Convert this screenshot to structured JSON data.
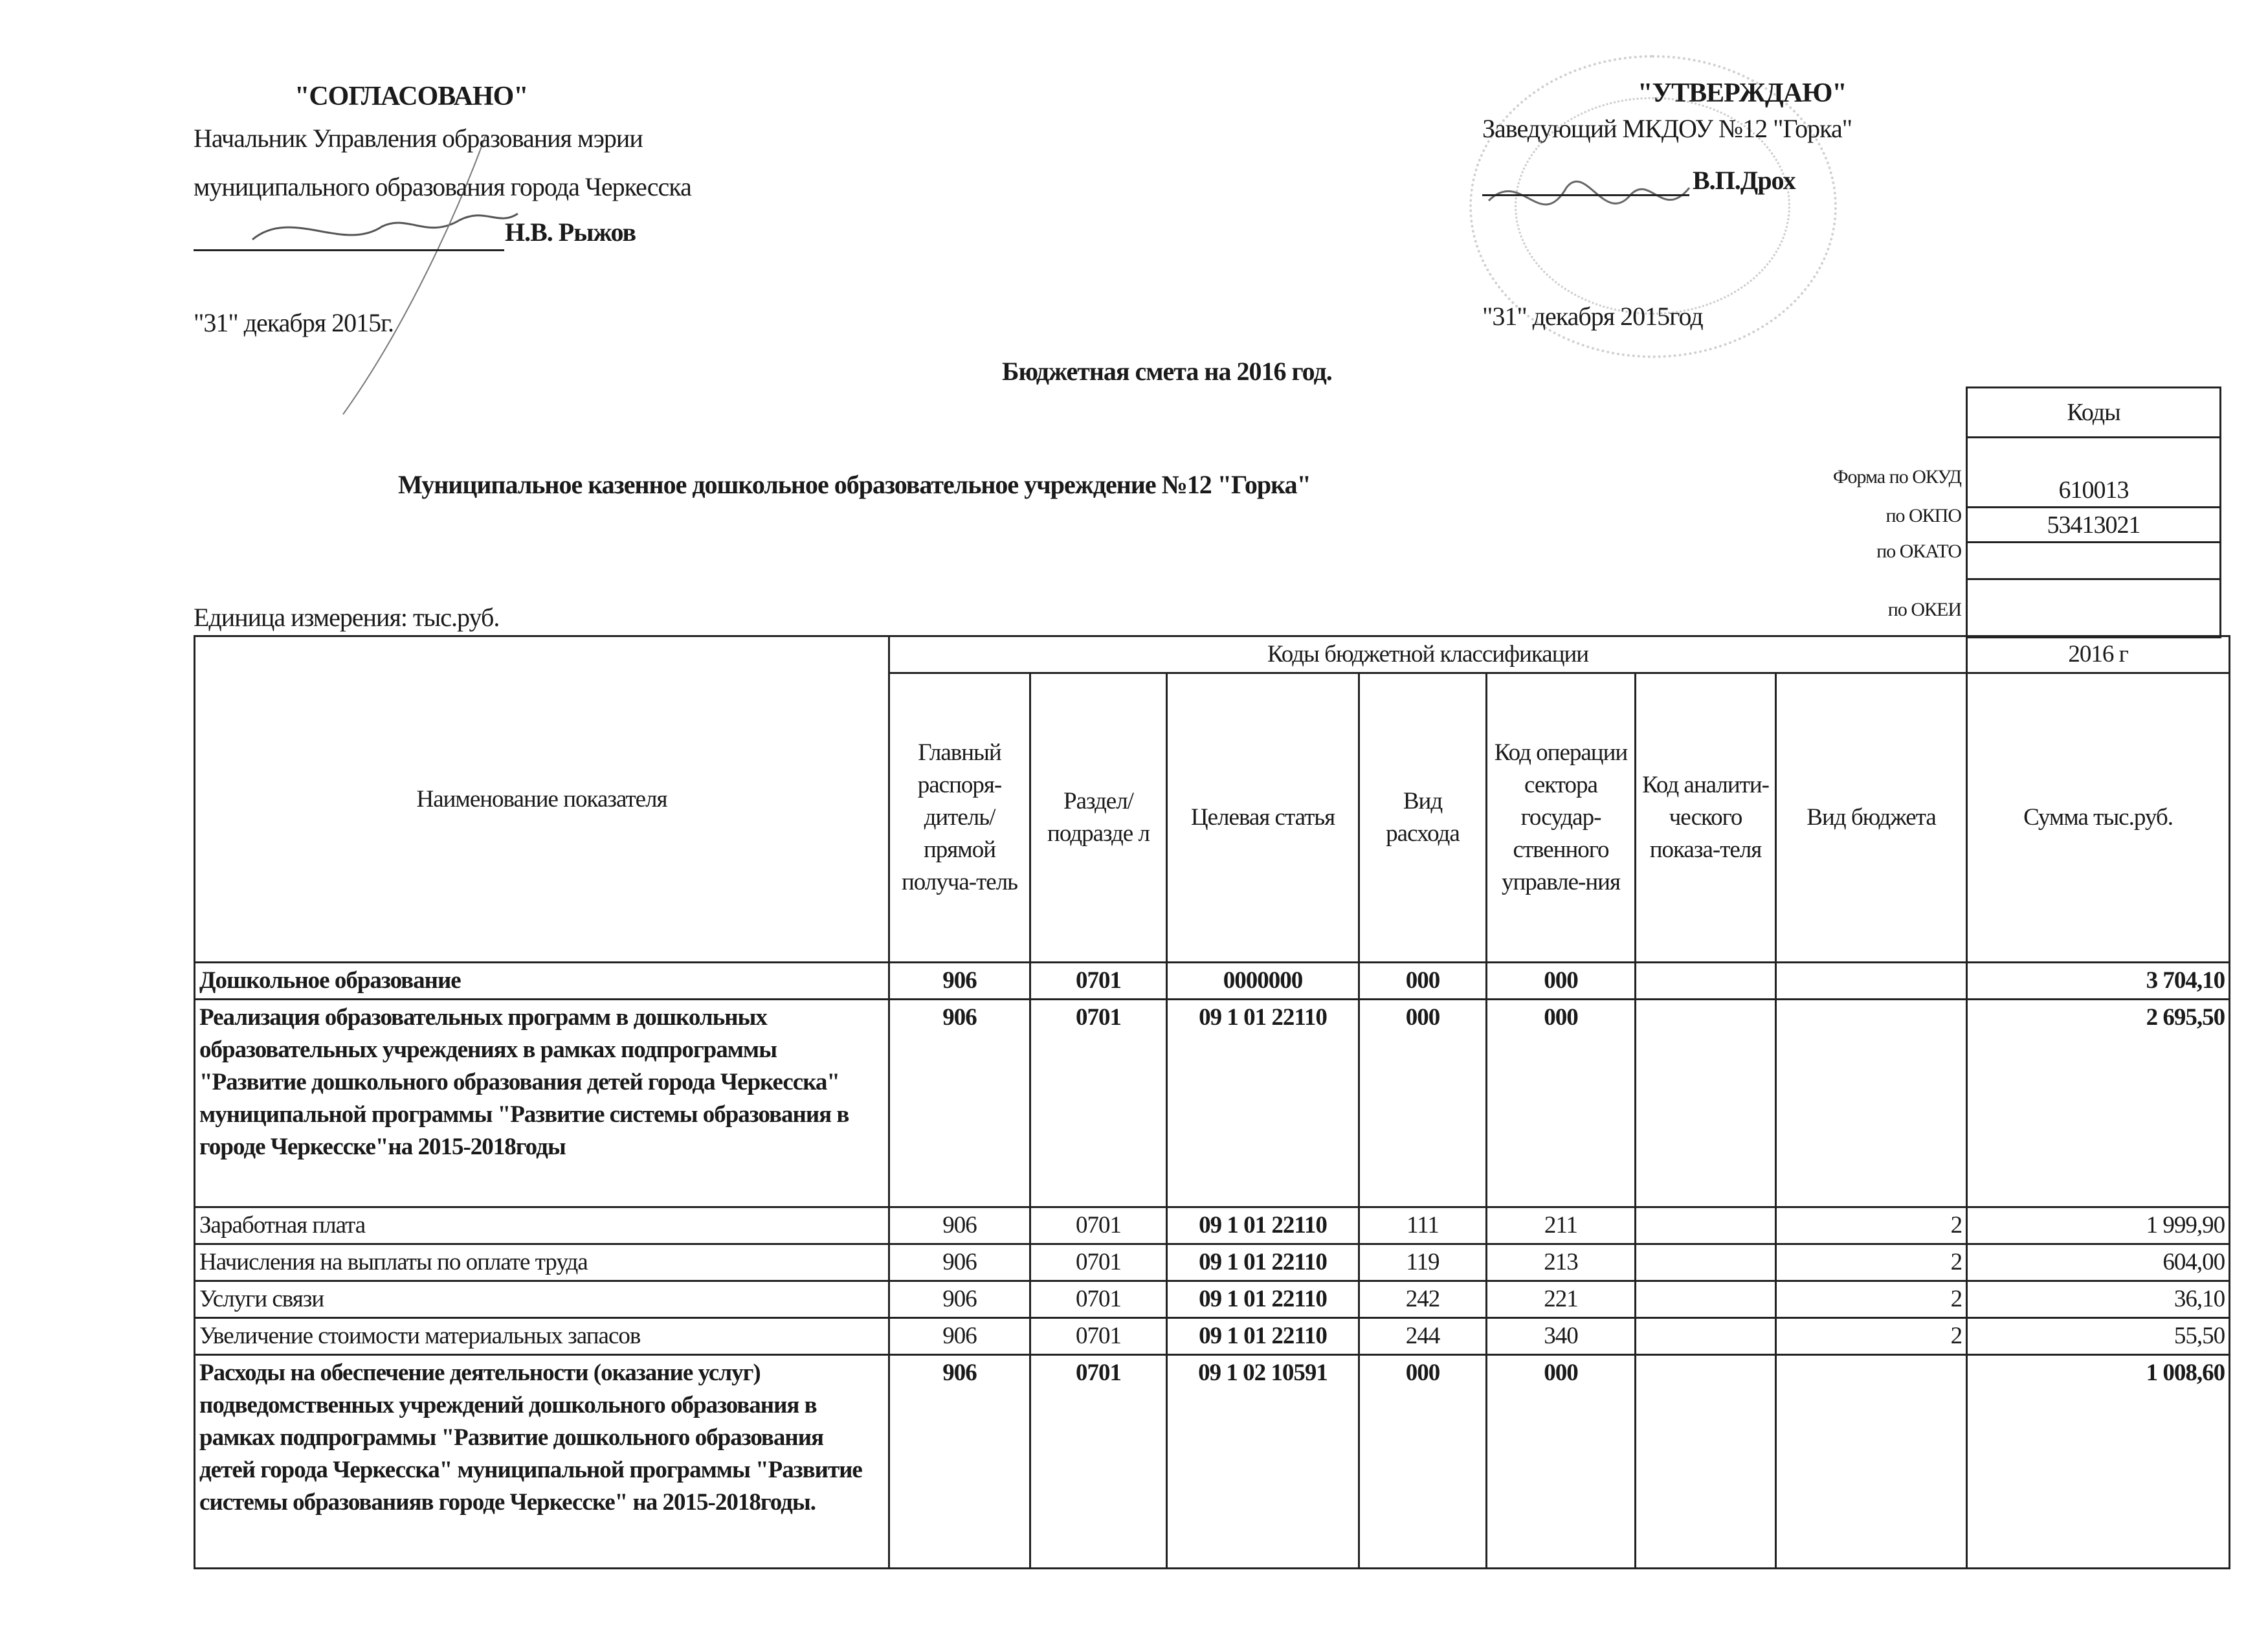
{
  "left_block": {
    "title": "\"СОГЛАСОВАНО\"",
    "line1": "Начальник Управления образования мэрии",
    "line2": "муниципального образования города Черкесска",
    "name": "Н.В. Рыжов",
    "date": "\"31\"  декабря 2015г."
  },
  "right_block": {
    "title": "\"УТВЕРЖДАЮ\"",
    "line1": "Заведующий МКДОУ №12 \"Горка\"",
    "name": "В.П.Дрох",
    "date": "\"31\" декабря  2015год"
  },
  "doc_title": "Бюджетная смета на 2016 год.",
  "org_name": "Муниципальное казенное дошкольное образовательное учреждение №12 \"Горка\"",
  "unit": "Единица измерения: тыс.руб.",
  "codes": {
    "header": "Коды",
    "rows": [
      {
        "label": "Форма по ОКУД",
        "value": "610013"
      },
      {
        "label": "по ОКПО",
        "value": "53413021"
      },
      {
        "label": "по ОКАТО",
        "value": ""
      },
      {
        "label": "по ОКЕИ",
        "value": ""
      }
    ]
  },
  "table": {
    "col_name": "Наименование показателя",
    "group_header": "Коды бюджетной классификации",
    "year_header": "2016 г",
    "columns": [
      "Главный распоря-дитель/ прямой получа-тель",
      "Раздел/ подразде л",
      "Целевая статья",
      "Вид расхода",
      "Код операции сектора государ-ственного управле-ния",
      "Код аналити-ческого показа-теля",
      "Вид бюджета",
      "Сумма  тыс.руб."
    ],
    "rows": [
      {
        "name": "Дошкольное образование",
        "bold": true,
        "gr": "906",
        "rz": "0701",
        "cs": "0000000",
        "vr": "000",
        "kosgu": "000",
        "an": "",
        "vb": "",
        "sum": "3 704,10"
      },
      {
        "name": "Реализация образовательных программ в дошкольных образовательных учреждениях в рамках подпрограммы \"Развитие дошкольного образования детей города Черкесска\"  муниципальной программы \"Развитие системы образования в городе Черкесске\"на 2015-2018годы",
        "bold": true,
        "gr": "906",
        "rz": "0701",
        "cs": "09 1 01 22110",
        "vr": "000",
        "kosgu": "000",
        "an": "",
        "vb": "",
        "sum": "2 695,50"
      },
      {
        "name": "Заработная плата",
        "bold": false,
        "gr": "906",
        "rz": "0701",
        "cs": "09 1 01 22110",
        "vr": "111",
        "kosgu": "211",
        "an": "",
        "vb": "2",
        "sum": "1 999,90"
      },
      {
        "name": "Начисления на выплаты по оплате труда",
        "bold": false,
        "gr": "906",
        "rz": "0701",
        "cs": "09 1 01 22110",
        "vr": "119",
        "kosgu": "213",
        "an": "",
        "vb": "2",
        "sum": "604,00"
      },
      {
        "name": "Услуги связи",
        "bold": false,
        "gr": "906",
        "rz": "0701",
        "cs": "09 1 01 22110",
        "vr": "242",
        "kosgu": "221",
        "an": "",
        "vb": "2",
        "sum": "36,10"
      },
      {
        "name": "Увеличение стоимости материальных запасов",
        "bold": false,
        "gr": "906",
        "rz": "0701",
        "cs": "09 1 01 22110",
        "vr": "244",
        "kosgu": "340",
        "an": "",
        "vb": "2",
        "sum": "55,50"
      },
      {
        "name": "Расходы на обеспечение деятельности (оказание услуг) подведомственных учреждений дошкольного образования в рамках  подпрограммы \"Развитие дошкольного образования детей города Черкесска\" муниципальной программы \"Развитие системы образованияв городе Черкесске\" на 2015-2018годы.",
        "bold": true,
        "gr": "906",
        "rz": "0701",
        "cs": "09 1 02 10591",
        "vr": "000",
        "kosgu": "000",
        "an": "",
        "vb": "",
        "sum": "1 008,60"
      }
    ]
  }
}
